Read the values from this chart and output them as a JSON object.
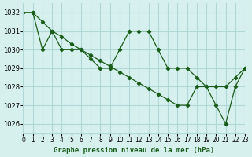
{
  "background_color": "#d6f0ee",
  "grid_color": "#b0d8d4",
  "line_color": "#1a5c1a",
  "marker_color": "#1a5c1a",
  "title": "Graphe pression niveau de la mer (hPa)",
  "xlim": [
    0,
    23
  ],
  "ylim": [
    1025.5,
    1032.5
  ],
  "yticks": [
    1026,
    1027,
    1028,
    1029,
    1030,
    1031,
    1032
  ],
  "xtick_labels": [
    "0",
    "1",
    "2",
    "3",
    "4",
    "5",
    "6",
    "7",
    "8",
    "9",
    "10",
    "11",
    "12",
    "13",
    "14",
    "15",
    "16",
    "17",
    "18",
    "19",
    "20",
    "21",
    "22",
    "23"
  ],
  "series1_x": [
    0,
    1,
    2,
    3,
    4,
    5,
    6,
    7,
    8,
    9,
    10,
    11,
    12,
    13,
    14,
    15,
    16,
    17,
    18,
    19,
    20,
    21,
    22,
    23
  ],
  "series1_y": [
    1032.0,
    1032.0,
    1030.0,
    1031.0,
    1030.0,
    1030.0,
    1030.0,
    1029.5,
    1029.0,
    1029.0,
    1030.0,
    1031.0,
    1031.0,
    1031.0,
    1030.0,
    1029.0,
    1029.0,
    1029.0,
    1028.5,
    1028.0,
    1027.0,
    1026.0,
    1028.0,
    1029.0
  ],
  "series2_x": [
    0,
    1,
    2,
    3,
    4,
    5,
    6,
    7,
    8,
    9,
    10,
    11,
    12,
    13,
    14,
    15,
    16,
    17,
    18,
    19,
    20,
    21,
    22,
    23
  ],
  "series2_y": [
    1032.0,
    1032.0,
    1031.5,
    1031.0,
    1030.7,
    1030.3,
    1030.0,
    1029.7,
    1029.4,
    1029.1,
    1028.8,
    1028.5,
    1028.2,
    1027.9,
    1027.6,
    1027.3,
    1027.0,
    1027.0,
    1028.0,
    1028.0,
    1028.0,
    1028.0,
    1028.5,
    1029.0
  ]
}
